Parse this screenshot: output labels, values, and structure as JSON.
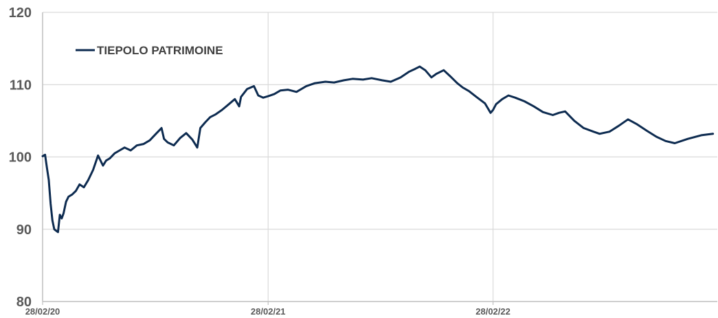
{
  "chart_data": {
    "type": "line",
    "title": "",
    "xlabel": "",
    "ylabel": "",
    "ylim": [
      80,
      120
    ],
    "yticks": [
      "80",
      "90",
      "100",
      "110",
      "120"
    ],
    "xticks": [
      "28/02/20",
      "28/02/21",
      "28/02/22"
    ],
    "grid": "on",
    "legend_position": "top-left",
    "colors": {
      "line": "#0d2b50",
      "grid": "#d9d9d9",
      "axis": "#bfbfbf",
      "tick_text": "#595959"
    },
    "series": [
      {
        "name": "TIEPOLO PATRIMOINE",
        "x": [
          "2020-02-28",
          "2020-03-03",
          "2020-03-06",
          "2020-03-09",
          "2020-03-12",
          "2020-03-15",
          "2020-03-18",
          "2020-03-21",
          "2020-03-24",
          "2020-03-27",
          "2020-03-30",
          "2020-04-02",
          "2020-04-06",
          "2020-04-10",
          "2020-04-16",
          "2020-04-22",
          "2020-04-28",
          "2020-05-05",
          "2020-05-12",
          "2020-05-20",
          "2020-05-28",
          "2020-06-05",
          "2020-06-10",
          "2020-06-16",
          "2020-06-24",
          "2020-07-02",
          "2020-07-10",
          "2020-07-20",
          "2020-07-30",
          "2020-08-10",
          "2020-08-20",
          "2020-08-30",
          "2020-09-08",
          "2020-09-12",
          "2020-09-18",
          "2020-09-28",
          "2020-10-08",
          "2020-10-18",
          "2020-10-28",
          "2020-11-05",
          "2020-11-10",
          "2020-11-18",
          "2020-11-26",
          "2020-12-05",
          "2020-12-15",
          "2020-12-25",
          "2021-01-05",
          "2021-01-12",
          "2021-01-15",
          "2021-01-25",
          "2021-02-05",
          "2021-02-12",
          "2021-02-20",
          "2021-02-28",
          "2021-03-10",
          "2021-03-20",
          "2021-04-01",
          "2021-04-15",
          "2021-05-01",
          "2021-05-15",
          "2021-06-01",
          "2021-06-15",
          "2021-07-01",
          "2021-07-15",
          "2021-08-01",
          "2021-08-15",
          "2021-09-01",
          "2021-09-15",
          "2021-10-01",
          "2021-10-15",
          "2021-10-25",
          "2021-11-01",
          "2021-11-10",
          "2021-11-20",
          "2021-11-28",
          "2021-12-10",
          "2021-12-20",
          "2022-01-01",
          "2022-01-10",
          "2022-01-20",
          "2022-02-01",
          "2022-02-15",
          "2022-02-24",
          "2022-02-28",
          "2022-03-05",
          "2022-03-15",
          "2022-03-25",
          "2022-04-05",
          "2022-04-20",
          "2022-05-05",
          "2022-05-20",
          "2022-06-05",
          "2022-06-15",
          "2022-06-25",
          "2022-07-10",
          "2022-07-25",
          "2022-08-10",
          "2022-08-20",
          "2022-09-05",
          "2022-09-20",
          "2022-10-05",
          "2022-10-20",
          "2022-11-05",
          "2022-11-20",
          "2022-12-05",
          "2022-12-20",
          "2023-01-10",
          "2023-02-01",
          "2023-02-20"
        ],
        "values": [
          100.1,
          100.3,
          98.5,
          96.8,
          93.5,
          91.2,
          90.0,
          89.8,
          89.6,
          92.0,
          91.5,
          92.2,
          93.8,
          94.5,
          94.8,
          95.3,
          96.2,
          95.8,
          96.8,
          98.2,
          100.2,
          98.8,
          99.5,
          99.8,
          100.5,
          100.9,
          101.3,
          100.9,
          101.6,
          101.8,
          102.3,
          103.2,
          104.0,
          102.5,
          102.0,
          101.6,
          102.6,
          103.3,
          102.4,
          101.3,
          104.0,
          104.8,
          105.5,
          105.9,
          106.5,
          107.2,
          108.0,
          107.0,
          108.3,
          109.4,
          109.8,
          108.5,
          108.2,
          108.4,
          108.7,
          109.2,
          109.3,
          109.0,
          109.8,
          110.2,
          110.4,
          110.3,
          110.6,
          110.8,
          110.7,
          110.9,
          110.6,
          110.4,
          111.0,
          111.8,
          112.2,
          112.5,
          112.0,
          111.0,
          111.5,
          112.0,
          111.2,
          110.2,
          109.6,
          109.1,
          108.3,
          107.4,
          106.1,
          106.5,
          107.3,
          108.0,
          108.5,
          108.2,
          107.7,
          107.0,
          106.2,
          105.8,
          106.1,
          106.3,
          105.0,
          104.0,
          103.5,
          103.2,
          103.5,
          104.3,
          105.2,
          104.5,
          103.6,
          102.8,
          102.2,
          101.9,
          102.5,
          103.0,
          103.2
        ]
      }
    ]
  }
}
